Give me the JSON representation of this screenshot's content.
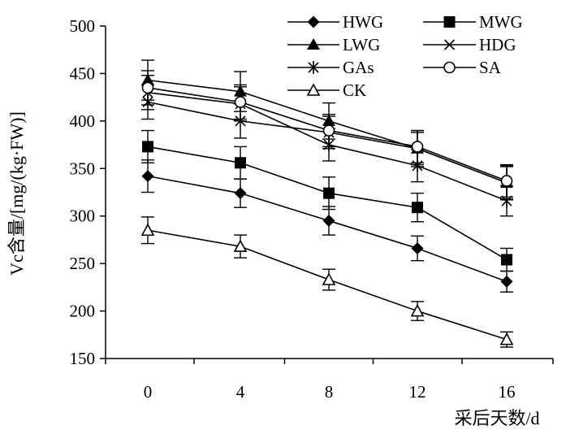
{
  "chart_data": {
    "type": "line",
    "title": "",
    "xlabel": "采后天数/d",
    "ylabel": "Vc含量/[mg/(kg·FW)]",
    "x": [
      0,
      4,
      8,
      12,
      16
    ],
    "x_ticks": [
      "0",
      "4",
      "8",
      "12",
      "16"
    ],
    "y_ticks": [
      "150",
      "200",
      "250",
      "300",
      "350",
      "400",
      "450",
      "500"
    ],
    "ylim": [
      150,
      500
    ],
    "grid": false,
    "legend_position": "top-right",
    "series": [
      {
        "name": "HWG",
        "marker": "diamond",
        "values": [
          342,
          324,
          295,
          266,
          231
        ],
        "errors": [
          17,
          15,
          15,
          13,
          11
        ]
      },
      {
        "name": "MWG",
        "marker": "square",
        "values": [
          373,
          356,
          324,
          309,
          254
        ],
        "errors": [
          17,
          17,
          17,
          15,
          12
        ]
      },
      {
        "name": "LWG",
        "marker": "triangle",
        "values": [
          443,
          431,
          400,
          371,
          335
        ],
        "errors": [
          21,
          21,
          19,
          19,
          18
        ]
      },
      {
        "name": "HDG",
        "marker": "x",
        "values": [
          420,
          400,
          388,
          371,
          335
        ],
        "errors": [
          18,
          18,
          17,
          17,
          17
        ]
      },
      {
        "name": "GAs",
        "marker": "asterisk",
        "values": [
          430,
          418,
          375,
          353,
          316
        ],
        "errors": [
          18,
          18,
          17,
          17,
          16
        ]
      },
      {
        "name": "SA",
        "marker": "circle",
        "values": [
          435,
          420,
          390,
          373,
          337
        ],
        "errors": [
          18,
          18,
          17,
          17,
          17
        ]
      },
      {
        "name": "CK",
        "marker": "triangle-open",
        "values": [
          285,
          268,
          233,
          200,
          170
        ],
        "errors": [
          14,
          12,
          11,
          10,
          8
        ]
      }
    ]
  }
}
